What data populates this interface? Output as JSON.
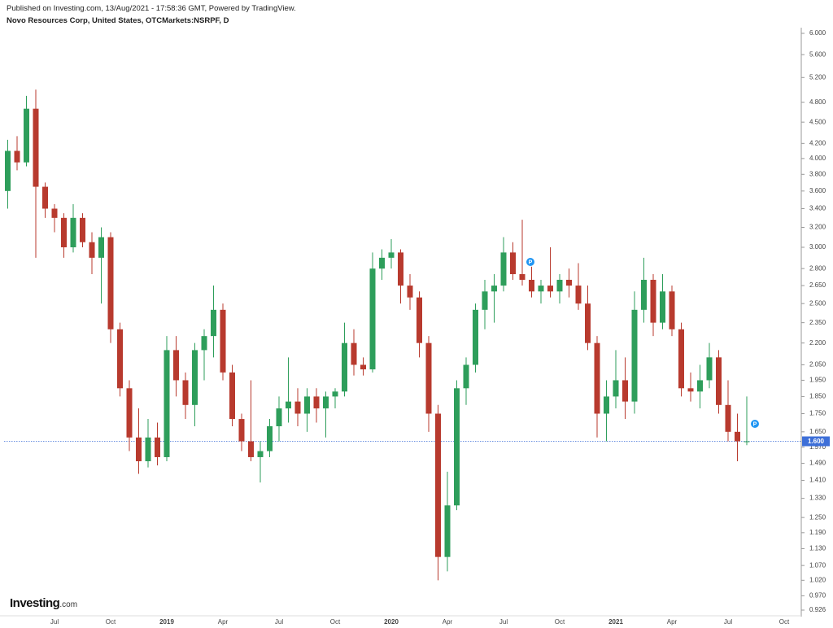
{
  "header": "Published on Investing.com, 13/Aug/2021 - 17:58:36 GMT, Powered by TradingView.",
  "logo": {
    "name": "Investing",
    "suffix": ".com"
  },
  "chart_data": {
    "type": "candlestick",
    "title": "Novo Resources Corp, United States, OTCMarkets:NSRPF, D",
    "log_scale": true,
    "grid": false,
    "up_color": "#2e9e5b",
    "down_color": "#b83a2e",
    "price_line_color": "#3d6fd8",
    "annotations": [
      "P",
      "P"
    ],
    "categories": [
      null,
      null,
      null,
      null,
      null,
      "Jul",
      null,
      null,
      null,
      null,
      null,
      "Oct",
      null,
      null,
      null,
      null,
      null,
      "2019",
      null,
      null,
      null,
      null,
      null,
      "Apr",
      null,
      null,
      null,
      null,
      null,
      "Jul",
      null,
      null,
      null,
      null,
      null,
      "Oct",
      null,
      null,
      null,
      null,
      null,
      "2020",
      null,
      null,
      null,
      null,
      null,
      "Apr",
      null,
      null,
      null,
      null,
      null,
      "Jul",
      null,
      null,
      null,
      null,
      null,
      "Oct",
      null,
      null,
      null,
      null,
      null,
      "2021",
      null,
      null,
      null,
      null,
      null,
      "Apr",
      null,
      null,
      null,
      null,
      null,
      "Jul",
      null,
      null,
      null,
      null,
      null,
      "Oct"
    ],
    "open": [
      3.6,
      4.1,
      3.95,
      4.7,
      3.65,
      3.4,
      3.3,
      3.0,
      3.3,
      3.05,
      2.9,
      3.1,
      2.3,
      1.9,
      1.62,
      1.5,
      1.62,
      1.52,
      2.15,
      1.95,
      1.8,
      2.15,
      2.25,
      2.45,
      2.0,
      1.72,
      1.6,
      1.52,
      1.55,
      1.68,
      1.78,
      1.82,
      1.75,
      1.85,
      1.78,
      1.85,
      1.88,
      2.2,
      2.05,
      2.02,
      2.8,
      2.9,
      2.95,
      2.65,
      2.55,
      2.2,
      1.75,
      1.1,
      1.3,
      1.9,
      2.05,
      2.45,
      2.6,
      2.65,
      2.95,
      2.75,
      2.7,
      2.6,
      2.65,
      2.6,
      2.7,
      2.65,
      2.5,
      2.2,
      1.75,
      1.85,
      1.95,
      1.82,
      2.45,
      2.7,
      2.35,
      2.6,
      2.3,
      1.9,
      1.88,
      1.95,
      2.1,
      1.8,
      1.65,
      1.6,
      null,
      null,
      null,
      null
    ],
    "high": [
      4.25,
      4.3,
      4.9,
      5.0,
      3.7,
      3.45,
      3.35,
      3.45,
      3.35,
      3.15,
      3.2,
      3.15,
      2.35,
      1.95,
      1.78,
      1.72,
      1.7,
      2.25,
      2.25,
      2.0,
      2.2,
      2.3,
      2.65,
      2.5,
      2.05,
      1.75,
      1.95,
      1.6,
      1.72,
      1.85,
      2.1,
      1.9,
      1.9,
      1.9,
      1.88,
      1.9,
      2.35,
      2.3,
      2.1,
      2.95,
      2.98,
      3.08,
      2.98,
      2.75,
      2.6,
      2.25,
      1.8,
      1.45,
      1.95,
      2.1,
      2.5,
      2.7,
      2.75,
      3.1,
      3.05,
      3.28,
      2.85,
      2.7,
      3.0,
      2.75,
      2.8,
      2.85,
      2.65,
      2.25,
      1.95,
      2.15,
      2.1,
      2.6,
      2.9,
      2.75,
      2.75,
      2.65,
      2.35,
      2.0,
      2.05,
      2.2,
      2.15,
      1.95,
      1.75,
      1.85,
      null,
      null,
      null,
      null
    ],
    "low": [
      3.4,
      3.85,
      3.9,
      2.9,
      3.3,
      3.15,
      2.9,
      2.95,
      3.0,
      2.75,
      2.5,
      2.2,
      1.85,
      1.55,
      1.44,
      1.47,
      1.48,
      1.5,
      1.85,
      1.72,
      1.68,
      1.95,
      2.1,
      1.95,
      1.68,
      1.55,
      1.5,
      1.4,
      1.52,
      1.6,
      1.7,
      1.68,
      1.65,
      1.7,
      1.62,
      1.78,
      1.85,
      1.98,
      1.98,
      2.0,
      2.7,
      2.8,
      2.5,
      2.45,
      2.1,
      1.65,
      1.02,
      1.05,
      1.28,
      1.8,
      2.0,
      2.3,
      2.35,
      2.6,
      2.7,
      2.65,
      2.55,
      2.5,
      2.55,
      2.5,
      2.55,
      2.45,
      2.15,
      1.62,
      1.6,
      1.78,
      1.72,
      1.75,
      2.35,
      2.25,
      2.3,
      2.25,
      1.85,
      1.82,
      1.78,
      1.9,
      1.75,
      1.6,
      1.5,
      1.58,
      null,
      null,
      null,
      null
    ],
    "close": [
      4.1,
      3.95,
      4.7,
      3.65,
      3.4,
      3.3,
      3.0,
      3.3,
      3.05,
      2.9,
      3.1,
      2.3,
      1.9,
      1.62,
      1.5,
      1.62,
      1.52,
      2.15,
      1.95,
      1.8,
      2.15,
      2.25,
      2.45,
      2.0,
      1.72,
      1.6,
      1.52,
      1.55,
      1.68,
      1.78,
      1.82,
      1.75,
      1.85,
      1.78,
      1.85,
      1.88,
      2.2,
      2.05,
      2.02,
      2.8,
      2.9,
      2.95,
      2.65,
      2.55,
      2.2,
      1.75,
      1.1,
      1.3,
      1.9,
      2.05,
      2.45,
      2.6,
      2.65,
      2.95,
      2.75,
      2.7,
      2.6,
      2.65,
      2.6,
      2.7,
      2.65,
      2.5,
      2.2,
      1.75,
      1.85,
      1.95,
      1.82,
      2.45,
      2.7,
      2.35,
      2.6,
      2.3,
      1.9,
      1.88,
      1.95,
      2.1,
      1.8,
      1.65,
      1.6,
      1.6,
      null,
      null,
      null,
      null
    ],
    "current_price": {
      "value": 1.6,
      "label": "1.600"
    },
    "ylim": [
      0.926,
      6.0
    ],
    "yticks": [
      {
        "value": 6,
        "label": "6.000"
      },
      {
        "value": 5.6,
        "label": "5.600"
      },
      {
        "value": 5.2,
        "label": "5.200"
      },
      {
        "value": 4.8,
        "label": "4.800"
      },
      {
        "value": 4.5,
        "label": "4.500"
      },
      {
        "value": 4.2,
        "label": "4.200"
      },
      {
        "value": 4,
        "label": "4.000"
      },
      {
        "value": 3.8,
        "label": "3.800"
      },
      {
        "value": 3.6,
        "label": "3.600"
      },
      {
        "value": 3.4,
        "label": "3.400"
      },
      {
        "value": 3.2,
        "label": "3.200"
      },
      {
        "value": 3,
        "label": "3.000"
      },
      {
        "value": 2.8,
        "label": "2.800"
      },
      {
        "value": 2.65,
        "label": "2.650"
      },
      {
        "value": 2.5,
        "label": "2.500"
      },
      {
        "value": 2.35,
        "label": "2.350"
      },
      {
        "value": 2.2,
        "label": "2.200"
      },
      {
        "value": 2.05,
        "label": "2.050"
      },
      {
        "value": 1.95,
        "label": "1.950"
      },
      {
        "value": 1.85,
        "label": "1.850"
      },
      {
        "value": 1.75,
        "label": "1.750"
      },
      {
        "value": 1.65,
        "label": "1.650"
      },
      {
        "value": 1.57,
        "label": "1.570"
      },
      {
        "value": 1.49,
        "label": "1.490"
      },
      {
        "value": 1.41,
        "label": "1.410"
      },
      {
        "value": 1.33,
        "label": "1.330"
      },
      {
        "value": 1.25,
        "label": "1.250"
      },
      {
        "value": 1.19,
        "label": "1.190"
      },
      {
        "value": 1.13,
        "label": "1.130"
      },
      {
        "value": 1.07,
        "label": "1.070"
      },
      {
        "value": 1.02,
        "label": "1.020"
      },
      {
        "value": 0.97,
        "label": "0.970"
      },
      {
        "value": 0.926,
        "label": "0.926"
      }
    ]
  }
}
